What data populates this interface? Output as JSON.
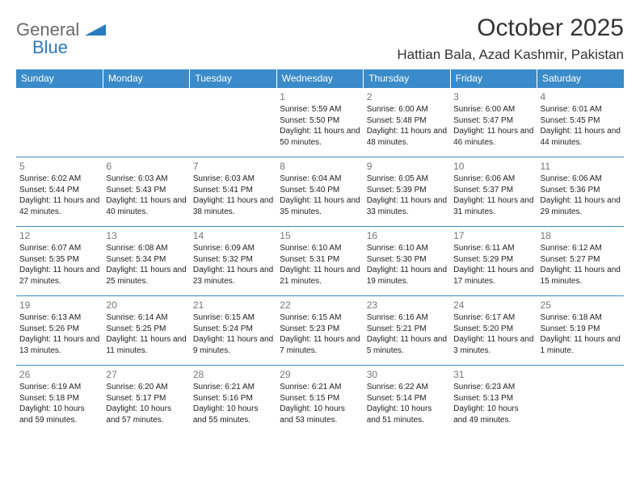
{
  "brand": {
    "word1": "General",
    "word2": "Blue"
  },
  "title": "October 2025",
  "location": "Hattian Bala, Azad Kashmir, Pakistan",
  "colors": {
    "header_bg": "#3a8bc9",
    "header_text": "#ffffff",
    "border": "#3a8bc9",
    "daynum": "#777777",
    "body_text": "#222222",
    "logo_gray": "#6a6a6a",
    "logo_blue": "#2b7bbf",
    "page_bg": "#ffffff"
  },
  "day_headers": [
    "Sunday",
    "Monday",
    "Tuesday",
    "Wednesday",
    "Thursday",
    "Friday",
    "Saturday"
  ],
  "weeks": [
    [
      {
        "n": "",
        "sr": "",
        "ss": "",
        "dl": ""
      },
      {
        "n": "",
        "sr": "",
        "ss": "",
        "dl": ""
      },
      {
        "n": "",
        "sr": "",
        "ss": "",
        "dl": ""
      },
      {
        "n": "1",
        "sr": "Sunrise: 5:59 AM",
        "ss": "Sunset: 5:50 PM",
        "dl": "Daylight: 11 hours and 50 minutes."
      },
      {
        "n": "2",
        "sr": "Sunrise: 6:00 AM",
        "ss": "Sunset: 5:48 PM",
        "dl": "Daylight: 11 hours and 48 minutes."
      },
      {
        "n": "3",
        "sr": "Sunrise: 6:00 AM",
        "ss": "Sunset: 5:47 PM",
        "dl": "Daylight: 11 hours and 46 minutes."
      },
      {
        "n": "4",
        "sr": "Sunrise: 6:01 AM",
        "ss": "Sunset: 5:45 PM",
        "dl": "Daylight: 11 hours and 44 minutes."
      }
    ],
    [
      {
        "n": "5",
        "sr": "Sunrise: 6:02 AM",
        "ss": "Sunset: 5:44 PM",
        "dl": "Daylight: 11 hours and 42 minutes."
      },
      {
        "n": "6",
        "sr": "Sunrise: 6:03 AM",
        "ss": "Sunset: 5:43 PM",
        "dl": "Daylight: 11 hours and 40 minutes."
      },
      {
        "n": "7",
        "sr": "Sunrise: 6:03 AM",
        "ss": "Sunset: 5:41 PM",
        "dl": "Daylight: 11 hours and 38 minutes."
      },
      {
        "n": "8",
        "sr": "Sunrise: 6:04 AM",
        "ss": "Sunset: 5:40 PM",
        "dl": "Daylight: 11 hours and 35 minutes."
      },
      {
        "n": "9",
        "sr": "Sunrise: 6:05 AM",
        "ss": "Sunset: 5:39 PM",
        "dl": "Daylight: 11 hours and 33 minutes."
      },
      {
        "n": "10",
        "sr": "Sunrise: 6:06 AM",
        "ss": "Sunset: 5:37 PM",
        "dl": "Daylight: 11 hours and 31 minutes."
      },
      {
        "n": "11",
        "sr": "Sunrise: 6:06 AM",
        "ss": "Sunset: 5:36 PM",
        "dl": "Daylight: 11 hours and 29 minutes."
      }
    ],
    [
      {
        "n": "12",
        "sr": "Sunrise: 6:07 AM",
        "ss": "Sunset: 5:35 PM",
        "dl": "Daylight: 11 hours and 27 minutes."
      },
      {
        "n": "13",
        "sr": "Sunrise: 6:08 AM",
        "ss": "Sunset: 5:34 PM",
        "dl": "Daylight: 11 hours and 25 minutes."
      },
      {
        "n": "14",
        "sr": "Sunrise: 6:09 AM",
        "ss": "Sunset: 5:32 PM",
        "dl": "Daylight: 11 hours and 23 minutes."
      },
      {
        "n": "15",
        "sr": "Sunrise: 6:10 AM",
        "ss": "Sunset: 5:31 PM",
        "dl": "Daylight: 11 hours and 21 minutes."
      },
      {
        "n": "16",
        "sr": "Sunrise: 6:10 AM",
        "ss": "Sunset: 5:30 PM",
        "dl": "Daylight: 11 hours and 19 minutes."
      },
      {
        "n": "17",
        "sr": "Sunrise: 6:11 AM",
        "ss": "Sunset: 5:29 PM",
        "dl": "Daylight: 11 hours and 17 minutes."
      },
      {
        "n": "18",
        "sr": "Sunrise: 6:12 AM",
        "ss": "Sunset: 5:27 PM",
        "dl": "Daylight: 11 hours and 15 minutes."
      }
    ],
    [
      {
        "n": "19",
        "sr": "Sunrise: 6:13 AM",
        "ss": "Sunset: 5:26 PM",
        "dl": "Daylight: 11 hours and 13 minutes."
      },
      {
        "n": "20",
        "sr": "Sunrise: 6:14 AM",
        "ss": "Sunset: 5:25 PM",
        "dl": "Daylight: 11 hours and 11 minutes."
      },
      {
        "n": "21",
        "sr": "Sunrise: 6:15 AM",
        "ss": "Sunset: 5:24 PM",
        "dl": "Daylight: 11 hours and 9 minutes."
      },
      {
        "n": "22",
        "sr": "Sunrise: 6:15 AM",
        "ss": "Sunset: 5:23 PM",
        "dl": "Daylight: 11 hours and 7 minutes."
      },
      {
        "n": "23",
        "sr": "Sunrise: 6:16 AM",
        "ss": "Sunset: 5:21 PM",
        "dl": "Daylight: 11 hours and 5 minutes."
      },
      {
        "n": "24",
        "sr": "Sunrise: 6:17 AM",
        "ss": "Sunset: 5:20 PM",
        "dl": "Daylight: 11 hours and 3 minutes."
      },
      {
        "n": "25",
        "sr": "Sunrise: 6:18 AM",
        "ss": "Sunset: 5:19 PM",
        "dl": "Daylight: 11 hours and 1 minute."
      }
    ],
    [
      {
        "n": "26",
        "sr": "Sunrise: 6:19 AM",
        "ss": "Sunset: 5:18 PM",
        "dl": "Daylight: 10 hours and 59 minutes."
      },
      {
        "n": "27",
        "sr": "Sunrise: 6:20 AM",
        "ss": "Sunset: 5:17 PM",
        "dl": "Daylight: 10 hours and 57 minutes."
      },
      {
        "n": "28",
        "sr": "Sunrise: 6:21 AM",
        "ss": "Sunset: 5:16 PM",
        "dl": "Daylight: 10 hours and 55 minutes."
      },
      {
        "n": "29",
        "sr": "Sunrise: 6:21 AM",
        "ss": "Sunset: 5:15 PM",
        "dl": "Daylight: 10 hours and 53 minutes."
      },
      {
        "n": "30",
        "sr": "Sunrise: 6:22 AM",
        "ss": "Sunset: 5:14 PM",
        "dl": "Daylight: 10 hours and 51 minutes."
      },
      {
        "n": "31",
        "sr": "Sunrise: 6:23 AM",
        "ss": "Sunset: 5:13 PM",
        "dl": "Daylight: 10 hours and 49 minutes."
      },
      {
        "n": "",
        "sr": "",
        "ss": "",
        "dl": ""
      }
    ]
  ]
}
